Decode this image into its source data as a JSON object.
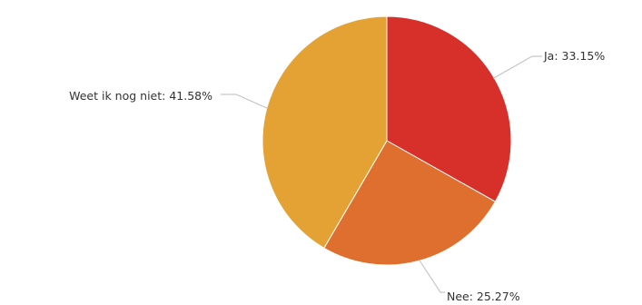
{
  "chart_data": {
    "type": "pie",
    "title": "",
    "start_angle": "12 o'clock",
    "direction": "clockwise",
    "legend": "none",
    "slices": [
      {
        "label": "Ja",
        "value": 33.15,
        "display": "Ja: 33.15%",
        "color": "#d7302b"
      },
      {
        "label": "Nee",
        "value": 25.27,
        "display": "Nee: 25.27%",
        "color": "#df6f2e"
      },
      {
        "label": "Weet ik nog niet",
        "value": 41.58,
        "display": "Weet ik nog niet: 41.58%",
        "color": "#e4a234"
      }
    ]
  }
}
